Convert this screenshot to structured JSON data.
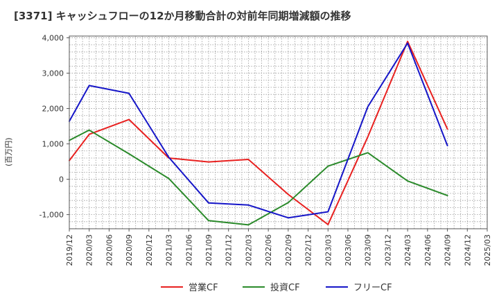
{
  "chart_data": {
    "type": "line",
    "title": "[3371]  キャッシュフローの12か月移動合計の対前年同期増減額の推移",
    "ylabel": "(百万円)",
    "xlabel": "",
    "ylim": [
      -1400,
      4050
    ],
    "yticks": [
      -1000,
      0,
      1000,
      2000,
      3000,
      4000
    ],
    "ytick_labels": [
      "-1,000",
      "0",
      "1,000",
      "2,000",
      "3,000",
      "4,000"
    ],
    "x_labels": [
      "2019/12",
      "2020/03",
      "2020/06",
      "2020/09",
      "2020/12",
      "2021/03",
      "2021/06",
      "2021/09",
      "2021/12",
      "2022/03",
      "2022/06",
      "2022/09",
      "2022/12",
      "2023/03",
      "2023/06",
      "2023/09",
      "2023/12",
      "2024/03",
      "2024/06",
      "2024/09",
      "2024/12",
      "2025/03"
    ],
    "series": [
      {
        "name": "営業CF",
        "color": "#e8201f",
        "points": [
          [
            0,
            530
          ],
          [
            1,
            1270
          ],
          [
            3,
            1690
          ],
          [
            5,
            600
          ],
          [
            7,
            490
          ],
          [
            9,
            560
          ],
          [
            11,
            -430
          ],
          [
            13,
            -1280
          ],
          [
            15,
            1200
          ],
          [
            17,
            3900
          ],
          [
            19,
            1420
          ]
        ]
      },
      {
        "name": "投資CF",
        "color": "#2a8a2a",
        "points": [
          [
            0,
            1100
          ],
          [
            1,
            1390
          ],
          [
            3,
            720
          ],
          [
            5,
            20
          ],
          [
            7,
            -1170
          ],
          [
            9,
            -1290
          ],
          [
            11,
            -660
          ],
          [
            13,
            370
          ],
          [
            15,
            750
          ],
          [
            17,
            -50
          ],
          [
            19,
            -460
          ]
        ]
      },
      {
        "name": "フリーCF",
        "color": "#1515c8",
        "points": [
          [
            0,
            1640
          ],
          [
            1,
            2650
          ],
          [
            3,
            2430
          ],
          [
            5,
            620
          ],
          [
            7,
            -670
          ],
          [
            9,
            -730
          ],
          [
            11,
            -1090
          ],
          [
            13,
            -920
          ],
          [
            15,
            2050
          ],
          [
            17,
            3850
          ],
          [
            19,
            950
          ]
        ]
      }
    ],
    "grid": true,
    "legend_position": "bottom"
  }
}
